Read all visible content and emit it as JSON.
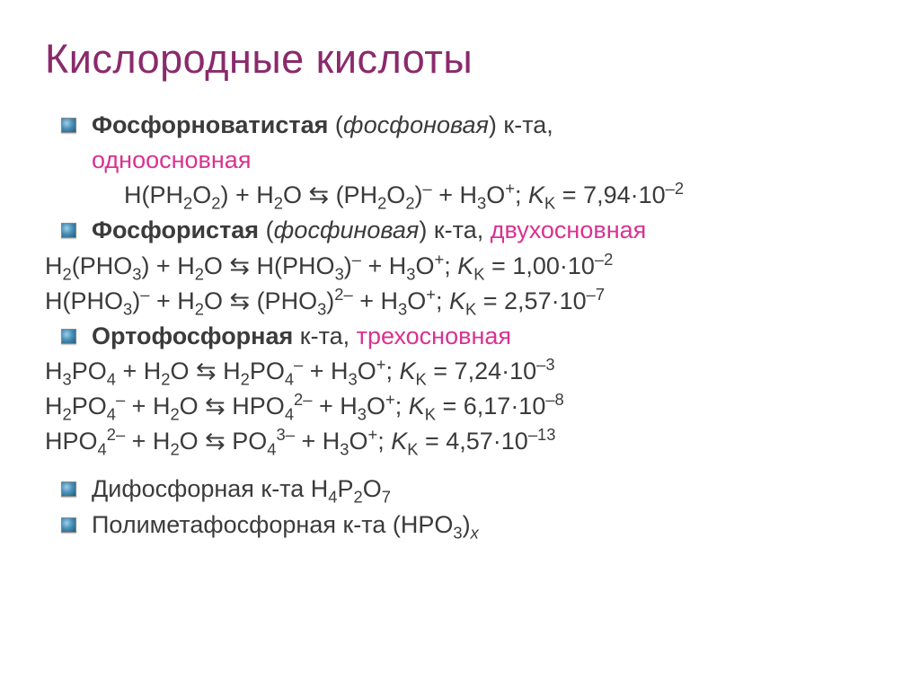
{
  "title": "Кислородные кислоты",
  "colors": {
    "title": "#8a2a6b",
    "text": "#3b3b3b",
    "accent": "#d93290",
    "background": "#ffffff"
  },
  "text": {
    "b1a": "Фосфорноватистая",
    "b1b": " (",
    "b1c": "фосфоновая",
    "b1d": ") к-та, ",
    "b1e": "одноосновная",
    "eq1a": "H(PH",
    "eq1b": "2",
    "eq1c": "O",
    "eq1d": "2",
    "eq1e": ") + H",
    "eq1f": "2",
    "eq1g": "O  ⇆  (PH",
    "eq1h": "2",
    "eq1i": "O",
    "eq1j": "2",
    "eq1k": ")",
    "eq1l": "–",
    "eq1m": " + H",
    "eq1n": "3",
    "eq1o": "O",
    "eq1p": "+",
    "eq1q": ";  ",
    "kk": "K",
    "kkK": "K",
    "kk_eq": " = ",
    "k1": "7,94·10",
    "k1e": "–2",
    "b2a": "Фосфористая",
    "b2b": " (",
    "b2c": "фосфиновая",
    "b2d": ") к-та, ",
    "b2e": "двухосновная",
    "eq2a": "H",
    "eq2b": "2",
    "eq2c": "(PHO",
    "eq2d": "3",
    "eq2e": ") + H",
    "eq2f": "2",
    "eq2g": "O  ⇆  H(PHO",
    "eq2h": "3",
    "eq2i": ")",
    "eq2j": "–",
    "eq2k": " + H",
    "eq2l": "3",
    "eq2m": "O",
    "eq2n": "+",
    "eq2o": "; ",
    "k2": "1,00·10",
    "k2e": "–2",
    "eq3a": "H(PHO",
    "eq3b": "3",
    "eq3c": ")",
    "eq3d": "–",
    "eq3e": " + H",
    "eq3f": "2",
    "eq3g": "O  ⇆   (PHO",
    "eq3h": "3",
    "eq3i": ")",
    "eq3j": "2–",
    "eq3k": " + H",
    "eq3l": "3",
    "eq3m": "O",
    "eq3n": "+",
    "eq3o": "; ",
    "k3": "2,57·10",
    "k3e": "–7",
    "b3a": "Ортофосфорная",
    "b3b": " к-та, ",
    "b3c": "трехосновная",
    "eq4a": "H",
    "eq4b": "3",
    "eq4c": "PO",
    "eq4d": "4",
    "eq4e": " + H",
    "eq4f": "2",
    "eq4g": "O  ⇆  H",
    "eq4h": "2",
    "eq4i": "PO",
    "eq4j": "4",
    "eq4k": "–",
    "eq4l": " + H",
    "eq4m": "3",
    "eq4n": "O",
    "eq4o": "+",
    "eq4p": "; ",
    "k4": "7,24·10",
    "k4e": "–3",
    "eq5a": "H",
    "eq5b": "2",
    "eq5c": "PO",
    "eq5d": "4",
    "eq5e": "–",
    "eq5f": " + H",
    "eq5g": "2",
    "eq5h": "O  ⇆  HPO",
    "eq5i": "4",
    "eq5j": "2–",
    "eq5k": " + H",
    "eq5l": "3",
    "eq5m": "O",
    "eq5n": "+",
    "eq5o": "; ",
    "k5": "6,17·10",
    "k5e": "–8",
    "eq6a": "HPO",
    "eq6b": "4",
    "eq6c": "2–",
    "eq6d": " + H",
    "eq6e": "2",
    "eq6f": "O  ⇆  PO",
    "eq6g": "4",
    "eq6h": "3–",
    "eq6i": " + H",
    "eq6j": "3",
    "eq6k": "O",
    "eq6l": "+",
    "eq6m": "; ",
    "k6": "4,57·10",
    "k6e": "–13",
    "b4a": "Дифосфорная к-та H",
    "b4b": "4",
    "b4c": "P",
    "b4d": "2",
    "b4e": "O",
    "b4f": "7",
    "b5a": "Полиметафосфорная к-та (HPO",
    "b5b": "3",
    "b5c": ")",
    "b5d": "x"
  }
}
